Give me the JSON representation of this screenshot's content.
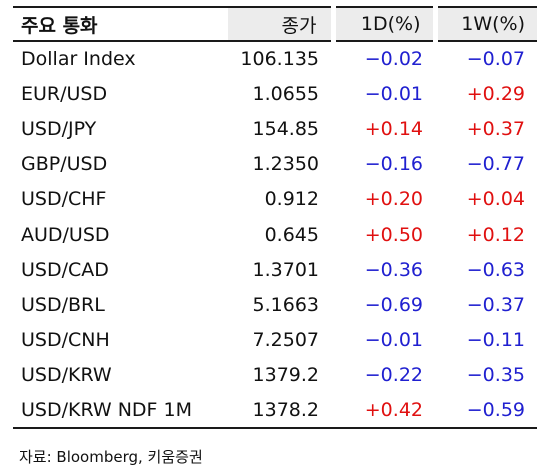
{
  "table": {
    "headers": [
      "주요 통화",
      "종가",
      "1D(%)",
      "1W(%)"
    ],
    "rows": [
      {
        "name": "Dollar Index",
        "close": "106.135",
        "d1": "−0.02",
        "w1": "−0.07",
        "d1_dir": "neg",
        "w1_dir": "neg"
      },
      {
        "name": "EUR/USD",
        "close": "1.0655",
        "d1": "−0.01",
        "w1": "+0.29",
        "d1_dir": "neg",
        "w1_dir": "pos"
      },
      {
        "name": "USD/JPY",
        "close": "154.85",
        "d1": "+0.14",
        "w1": "+0.37",
        "d1_dir": "pos",
        "w1_dir": "pos"
      },
      {
        "name": "GBP/USD",
        "close": "1.2350",
        "d1": "−0.16",
        "w1": "−0.77",
        "d1_dir": "neg",
        "w1_dir": "neg"
      },
      {
        "name": "USD/CHF",
        "close": "0.912",
        "d1": "+0.20",
        "w1": "+0.04",
        "d1_dir": "pos",
        "w1_dir": "pos"
      },
      {
        "name": "AUD/USD",
        "close": "0.645",
        "d1": "+0.50",
        "w1": "+0.12",
        "d1_dir": "pos",
        "w1_dir": "pos"
      },
      {
        "name": "USD/CAD",
        "close": "1.3701",
        "d1": "−0.36",
        "w1": "−0.63",
        "d1_dir": "neg",
        "w1_dir": "neg"
      },
      {
        "name": "USD/BRL",
        "close": "5.1663",
        "d1": "−0.69",
        "w1": "−0.37",
        "d1_dir": "neg",
        "w1_dir": "neg"
      },
      {
        "name": "USD/CNH",
        "close": "7.2507",
        "d1": "−0.01",
        "w1": "−0.11",
        "d1_dir": "neg",
        "w1_dir": "neg"
      },
      {
        "name": "USD/KRW",
        "close": "1379.2",
        "d1": "−0.22",
        "w1": "−0.35",
        "d1_dir": "neg",
        "w1_dir": "neg"
      },
      {
        "name": "USD/KRW NDF 1M",
        "close": "1378.2",
        "d1": "+0.42",
        "w1": "−0.59",
        "d1_dir": "pos",
        "w1_dir": "neg"
      }
    ]
  },
  "source": "자료: Bloomberg, 키움증권",
  "colors": {
    "positive": "#e01010",
    "negative": "#2020d0",
    "header_shade": "#ececec"
  }
}
